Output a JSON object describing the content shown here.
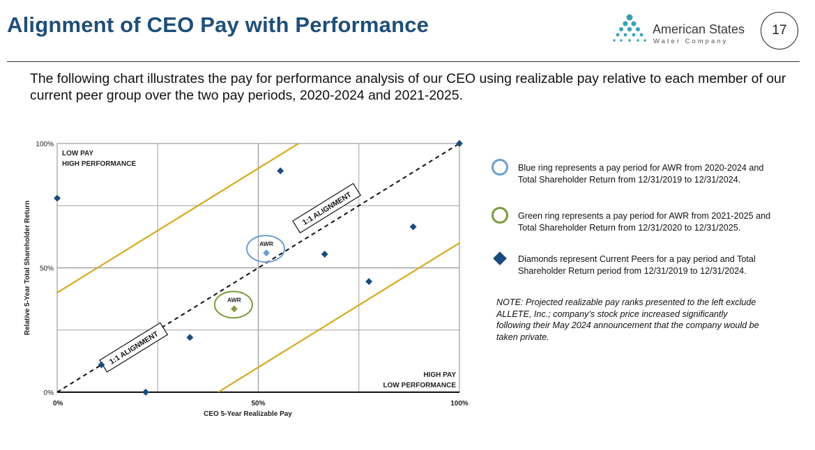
{
  "header": {
    "title": "Alignment of CEO Pay with Performance",
    "logo_name": "American States",
    "logo_sub": "Water Company",
    "page_number": "17"
  },
  "intro": "The following chart illustrates the pay for performance analysis of our CEO using realizable pay relative to each member of our current peer group over the two pay periods, 2020-2024 and 2021-2025.",
  "legend": {
    "blue": "Blue ring represents a pay period for AWR from 2020-2024 and Total Shareholder Return from 12/31/2019 to 12/31/2024.",
    "green": "Green ring represents a pay period for AWR from 2021-2025 and Total Shareholder Return from 12/31/2020 to 12/31/2025.",
    "diamonds": "Diamonds represent Current Peers for a pay period and Total Shareholder Return period from 12/31/2019 to 12/31/2024.",
    "note": "NOTE: Projected realizable pay ranks presented to the left exclude ALLETE, Inc.; company’s stock price increased significantly following their May 2024 announcement that the company would be taken private."
  },
  "colors": {
    "title": "#1f4e79",
    "peer_diamond": "#1b4b7c",
    "blue_ring": "#6a9ed0",
    "green_ring": "#7a9a3a",
    "band_line": "#d4aa1f",
    "grid": "#a0a0a0"
  },
  "chart_data": {
    "type": "scatter",
    "title": "",
    "xlabel": "CEO 5-Year Realizable Pay",
    "ylabel": "Relative 5-Year Total Shareholder Return",
    "xlim": [
      0,
      100
    ],
    "ylim": [
      0,
      100
    ],
    "x_ticks": [
      {
        "value": 0,
        "label": "0%"
      },
      {
        "value": 50,
        "label": "50%"
      },
      {
        "value": 100,
        "label": "100%"
      }
    ],
    "y_ticks": [
      {
        "value": 0,
        "label": "0%"
      },
      {
        "value": 50,
        "label": "50%"
      },
      {
        "value": 100,
        "label": "100%"
      }
    ],
    "grid_values": [
      25,
      50,
      75
    ],
    "grid": true,
    "peers": {
      "name": "Current Peers",
      "points": [
        {
          "x": 0,
          "y": 78
        },
        {
          "x": 11,
          "y": 11
        },
        {
          "x": 22,
          "y": 0
        },
        {
          "x": 33,
          "y": 22
        },
        {
          "x": 55.5,
          "y": 89
        },
        {
          "x": 66.5,
          "y": 55.5
        },
        {
          "x": 77.5,
          "y": 44.5
        },
        {
          "x": 88.5,
          "y": 66.5
        },
        {
          "x": 100,
          "y": 100
        }
      ]
    },
    "awr": [
      {
        "name": "AWR 2020-2024",
        "label": "AWR",
        "x": 52,
        "y": 56,
        "ring": "blue"
      },
      {
        "name": "AWR 2021-2025",
        "label": "AWR",
        "x": 44,
        "y": 33.5,
        "ring": "green"
      }
    ],
    "alignment_line": {
      "from": [
        0,
        0
      ],
      "to": [
        100,
        100
      ],
      "style": "dashed"
    },
    "alignment_labels": [
      {
        "text": "1:1 ALIGNMENT",
        "x": 67,
        "y": 74
      },
      {
        "text": "1:1 ALIGNMENT",
        "x": 19,
        "y": 18
      }
    ],
    "bands": [
      {
        "from": [
          0,
          40
        ],
        "to": [
          60,
          100
        ]
      },
      {
        "from": [
          40,
          0
        ],
        "to": [
          100,
          60
        ]
      }
    ],
    "quadrant_labels": [
      {
        "lines": [
          "LOW PAY",
          "HIGH PERFORMANCE"
        ],
        "position": "top-left"
      },
      {
        "lines": [
          "HIGH PAY",
          "LOW PERFORMANCE"
        ],
        "position": "bottom-right"
      }
    ]
  }
}
